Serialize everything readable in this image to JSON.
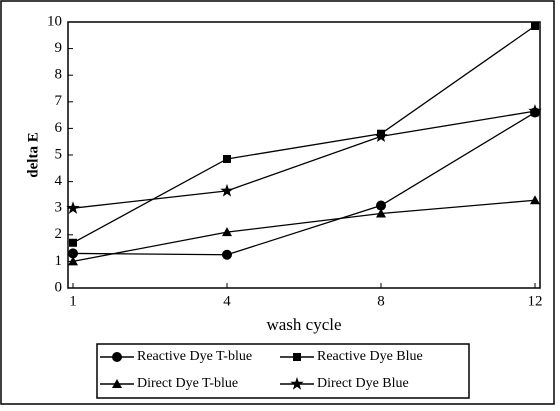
{
  "chart_data": {
    "type": "line",
    "xlabel": "wash cycle",
    "ylabel": "delta E",
    "categories": [
      "1",
      "4",
      "8",
      "12"
    ],
    "ylim": [
      0,
      10
    ],
    "yticks": [
      0,
      1,
      2,
      3,
      4,
      5,
      6,
      7,
      8,
      9,
      10
    ],
    "series": [
      {
        "name": "Reactive Dye T-blue",
        "color": "#000000",
        "marker": "circle",
        "values": [
          1.3,
          1.25,
          3.1,
          6.6
        ]
      },
      {
        "name": "Reactive Dye Blue",
        "color": "#000000",
        "marker": "square",
        "values": [
          1.7,
          4.85,
          5.8,
          9.85
        ]
      },
      {
        "name": "Direct Dye T-blue",
        "color": "#000000",
        "marker": "triangle",
        "values": [
          1.0,
          2.1,
          2.8,
          3.3
        ]
      },
      {
        "name": "Direct Dye Blue",
        "color": "#000000",
        "marker": "star",
        "values": [
          3.0,
          3.65,
          5.7,
          6.65
        ]
      }
    ]
  }
}
